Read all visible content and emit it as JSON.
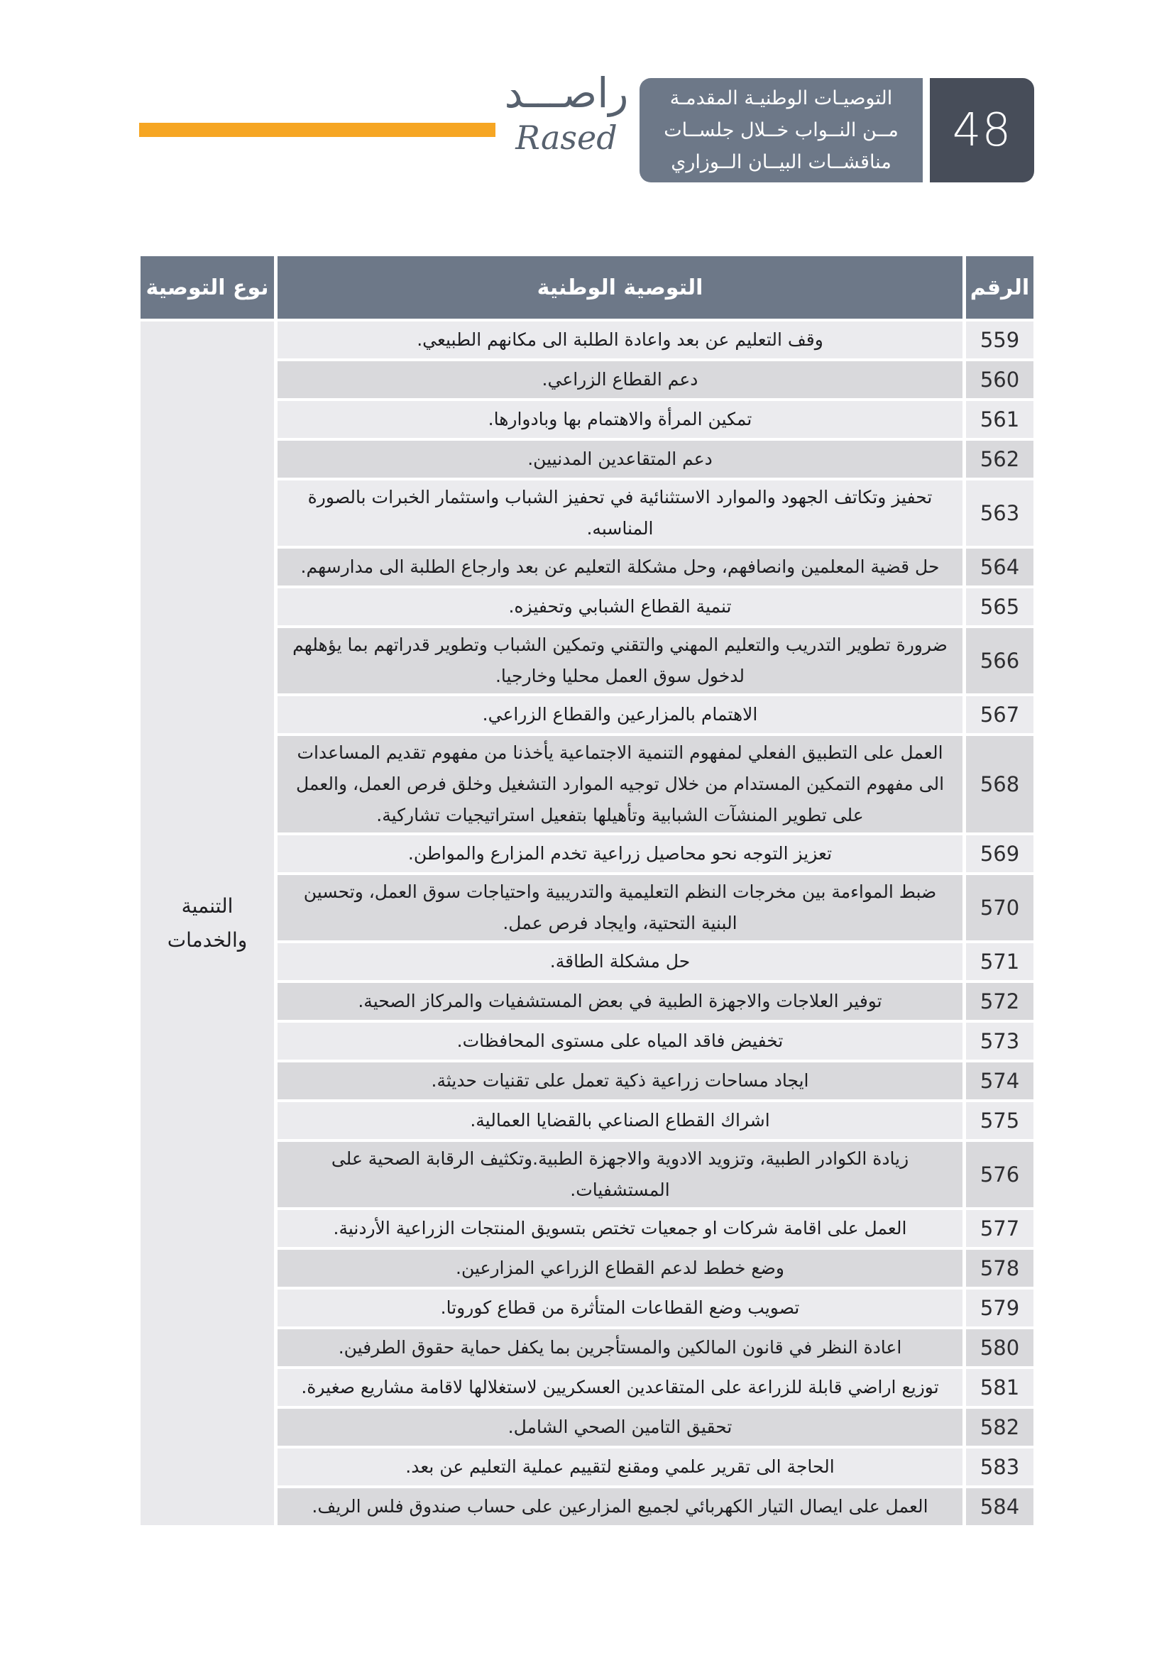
{
  "brand": {
    "name_ar": "راصـــد",
    "name_en": "Rased"
  },
  "header": {
    "title": "التوصيـات الوطنيـة المقدمـة\nمــن النــواب خــلال جلســات\nمناقشــات البيــان الــوزاري",
    "page_number": "48"
  },
  "colors": {
    "accent_orange": "#F6A623",
    "header_blue_gray": "#6D7888",
    "page_number_dark": "#474D59",
    "row_light": "#EBEBEE",
    "row_dark": "#D9D9DC",
    "type_column": "#E9E9EC",
    "brand_gray": "#57616E"
  },
  "table": {
    "headers": {
      "number": "الرقم",
      "recommendation": "التوصية الوطنية",
      "type": "نوع التوصية"
    },
    "type_label": "التنمية\nوالخدمات",
    "rows": [
      {
        "number": "559",
        "text": "وقف التعليم عن بعد واعادة الطلبة الى مكانهم الطبيعي."
      },
      {
        "number": "560",
        "text": "دعم القطاع الزراعي."
      },
      {
        "number": "561",
        "text": "تمكين المرأة والاهتمام بها وبادوارها."
      },
      {
        "number": "562",
        "text": "دعم المتقاعدين المدنيين."
      },
      {
        "number": "563",
        "text": "تحفيز وتكاتف الجهود والموارد الاستثنائية في تحفيز الشباب واستثمار الخبرات بالصورة المناسبه."
      },
      {
        "number": "564",
        "text": "حل قضية المعلمين وانصافهم، وحل مشكلة التعليم عن بعد وارجاع الطلبة الى مدارسهم."
      },
      {
        "number": "565",
        "text": "تنمية القطاع الشبابي وتحفيزه."
      },
      {
        "number": "566",
        "text": "ضرورة تطوير التدريب والتعليم المهني والتقني وتمكين الشباب وتطوير قدراتهم بما يؤهلهم لدخول سوق العمل محليا وخارجيا."
      },
      {
        "number": "567",
        "text": "الاهتمام بالمزارعين والقطاع الزراعي."
      },
      {
        "number": "568",
        "text": "العمل على التطبيق الفعلي لمفهوم التنمية الاجتماعية يأخذنا من مفهوم تقديم المساعدات الى مفهوم التمكين المستدام من خلال توجيه الموارد التشغيل وخلق فرص العمل، والعمل على تطوير المنشآت الشبابية وتأهيلها بتفعيل استراتيجيات تشاركية."
      },
      {
        "number": "569",
        "text": "تعزيز التوجه نحو محاصيل زراعية تخدم المزارع والمواطن."
      },
      {
        "number": "570",
        "text": "ضبط المواءمة بين مخرجات النظم التعليمية والتدريبية واحتياجات سوق العمل، وتحسين البنية التحتية، وايجاد فرص عمل."
      },
      {
        "number": "571",
        "text": "حل مشكلة الطاقة."
      },
      {
        "number": "572",
        "text": "توفير العلاجات والاجهزة الطبية في بعض المستشفيات والمركاز الصحية."
      },
      {
        "number": "573",
        "text": "تخفيض فاقد المياه على مستوى المحافظات."
      },
      {
        "number": "574",
        "text": "ايجاد مساحات زراعية ذكية تعمل على تقنيات حديثة."
      },
      {
        "number": "575",
        "text": "اشراك القطاع الصناعي بالقضايا العمالية."
      },
      {
        "number": "576",
        "text": "زيادة الكوادر الطبية، وتزويد الادوية والاجهزة الطبية.وتكثيف الرقابة الصحية على المستشفيات."
      },
      {
        "number": "577",
        "text": "العمل على اقامة شركات او جمعيات تختص بتسويق المنتجات الزراعية الأردنية."
      },
      {
        "number": "578",
        "text": "وضع خطط لدعم القطاع الزراعي المزارعين."
      },
      {
        "number": "579",
        "text": "تصويب وضع القطاعات المتأثرة من قطاع كوروتا."
      },
      {
        "number": "580",
        "text": "اعادة النظر في قانون المالكين والمستأجرين بما يكفل حماية حقوق الطرفين."
      },
      {
        "number": "581",
        "text": "توزيع اراضي قابلة للزراعة على المتقاعدين العسكريين لاستغلالها لاقامة مشاريع صغيرة."
      },
      {
        "number": "582",
        "text": "تحقيق التامين الصحي الشامل."
      },
      {
        "number": "583",
        "text": "الحاجة الى تقرير علمي ومقنع لتقييم عملية التعليم عن بعد."
      },
      {
        "number": "584",
        "text": "العمل على ايصال التيار الكهربائي لجميع المزارعين على حساب صندوق فلس الريف."
      }
    ]
  }
}
